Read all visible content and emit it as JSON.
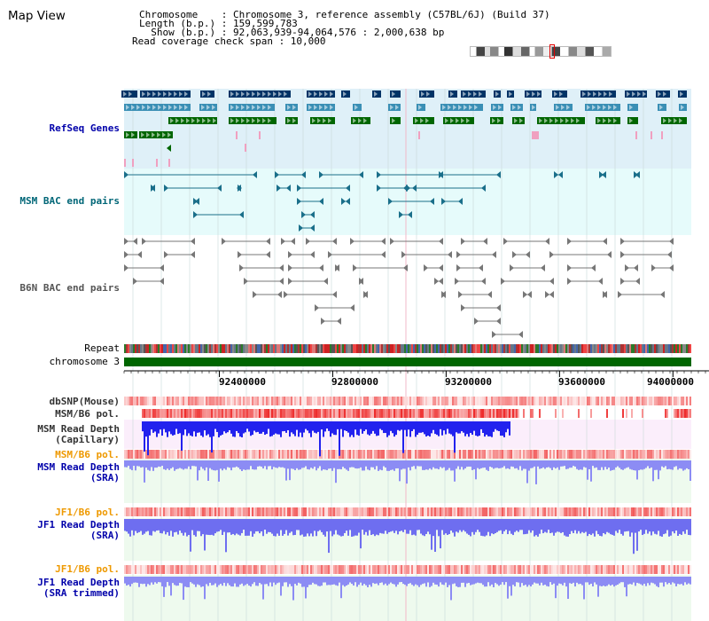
{
  "header": {
    "app_title": "Map View",
    "chromosome_line": "Chromosome    : Chromosome 3, reference assembly (C57BL/6J) (Build 37)",
    "length_line": "Length (b.p.) : 159,599,783",
    "show_line": "  Show (b.p.) : 92,063,939-94,064,576 : 2,000,638 bp",
    "coverage_line": "Read coverage check span : 10,000"
  },
  "tracks": {
    "refseq": "RefSeq Genes",
    "msm_bac": "MSM BAC end pairs",
    "b6n_bac": "B6N BAC end pairs",
    "repeat": "Repeat",
    "chromosome": "chromosome 3",
    "dbsnp": "dbSNP(Mouse)",
    "msm_b6_pol_1": "MSM/B6 pol.",
    "msm_depth_cap": "MSM Read Depth\n(Capillary)",
    "msm_b6_pol_2": "MSM/B6 pol.",
    "msm_depth_sra": "MSM Read Depth\n(SRA)",
    "jf1_b6_pol_1": "JF1/B6 pol.",
    "jf1_depth_sra": "JF1 Read Depth\n(SRA)",
    "jf1_b6_pol_2": "JF1/B6 pol.",
    "jf1_depth_trim": "JF1 Read Depth\n(SRA trimmed)"
  },
  "axis": {
    "ticks": [
      "92400000",
      "92800000",
      "93200000",
      "93600000",
      "94000000"
    ],
    "tick_values": [
      92400000,
      92800000,
      93200000,
      93600000,
      94000000
    ],
    "range": [
      92063939,
      94064576
    ]
  },
  "colors": {
    "refseq_label": "#0000aa",
    "msm_bac_label": "#006677",
    "b6n_bac_label": "#555555",
    "pol_orange": "#ee9900",
    "depth_blue": "#0000aa",
    "gene_dark": "#003366",
    "gene_teal": "#3a8fb5",
    "gene_green": "#006600",
    "chromosome_green": "#006600"
  }
}
